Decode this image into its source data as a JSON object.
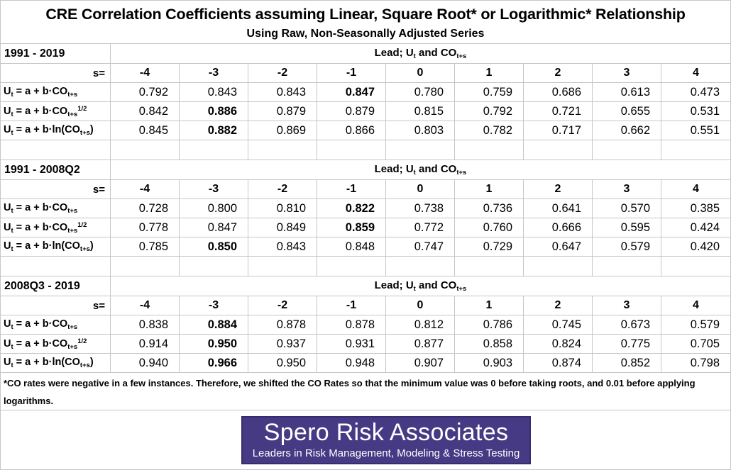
{
  "title": "CRE Correlation Coefficients assuming Linear, Square Root* or Logarithmic* Relationship",
  "subtitle": "Using Raw, Non-Seasonally Adjusted Series",
  "footnote": "*CO rates were negative in a few instances. Therefore, we shifted the CO Rates so that the minimum value was 0 before taking roots, and 0.01 before applying logarithms.",
  "banner": {
    "name": "Spero Risk Associates",
    "tagline": "Leaders in Risk Management, Modeling & Stress Testing",
    "bg_color": "#473a85",
    "border_color": "#382c6e",
    "text_color": "#ffffff"
  },
  "colors": {
    "grid_line": "#c6c6c6",
    "text": "#000000",
    "background": "#ffffff"
  },
  "chart_data": [
    {
      "type": "table",
      "period": "1991 - 2019",
      "lead_header": "Lead; U~t~ and CO~t+s~",
      "s_label": "s=",
      "columns": [
        "-4",
        "-3",
        "-2",
        "-1",
        "0",
        "1",
        "2",
        "3",
        "4"
      ],
      "rows": [
        {
          "label": "U~t~ = a + b·CO~t+s~",
          "values": [
            "0.792",
            "0.843",
            "0.843",
            "0.847",
            "0.780",
            "0.759",
            "0.686",
            "0.613",
            "0.473"
          ],
          "bold_index": 3
        },
        {
          "label": "U~t~ = a + b·CO~t+s~^1/2^",
          "values": [
            "0.842",
            "0.886",
            "0.879",
            "0.879",
            "0.815",
            "0.792",
            "0.721",
            "0.655",
            "0.531"
          ],
          "bold_index": 1
        },
        {
          "label": "U~t~ = a + b·ln(CO~t+s~)",
          "values": [
            "0.845",
            "0.882",
            "0.869",
            "0.866",
            "0.803",
            "0.782",
            "0.717",
            "0.662",
            "0.551"
          ],
          "bold_index": 1
        }
      ]
    },
    {
      "type": "table",
      "period": "1991 - 2008Q2",
      "lead_header": "Lead; U~t~ and CO~t+s~",
      "s_label": "s=",
      "columns": [
        "-4",
        "-3",
        "-2",
        "-1",
        "0",
        "1",
        "2",
        "3",
        "4"
      ],
      "rows": [
        {
          "label": "U~t~ = a + b·CO~t+s~",
          "values": [
            "0.728",
            "0.800",
            "0.810",
            "0.822",
            "0.738",
            "0.736",
            "0.641",
            "0.570",
            "0.385"
          ],
          "bold_index": 3
        },
        {
          "label": "U~t~ = a + b·CO~t+s~^1/2^",
          "values": [
            "0.778",
            "0.847",
            "0.849",
            "0.859",
            "0.772",
            "0.760",
            "0.666",
            "0.595",
            "0.424"
          ],
          "bold_index": 3
        },
        {
          "label": "U~t~ = a + b·ln(CO~t+s~)",
          "values": [
            "0.785",
            "0.850",
            "0.843",
            "0.848",
            "0.747",
            "0.729",
            "0.647",
            "0.579",
            "0.420"
          ],
          "bold_index": 1
        }
      ]
    },
    {
      "type": "table",
      "period": "2008Q3 - 2019",
      "lead_header": "Lead; U~t~ and CO~t+s~",
      "s_label": "s=",
      "columns": [
        "-4",
        "-3",
        "-2",
        "-1",
        "0",
        "1",
        "2",
        "3",
        "4"
      ],
      "rows": [
        {
          "label": "U~t~ = a + b·CO~t+s~",
          "values": [
            "0.838",
            "0.884",
            "0.878",
            "0.878",
            "0.812",
            "0.786",
            "0.745",
            "0.673",
            "0.579"
          ],
          "bold_index": 1
        },
        {
          "label": "U~t~ = a + b·CO~t+s~^1/2^",
          "values": [
            "0.914",
            "0.950",
            "0.937",
            "0.931",
            "0.877",
            "0.858",
            "0.824",
            "0.775",
            "0.705"
          ],
          "bold_index": 1
        },
        {
          "label": "U~t~ = a + b·ln(CO~t+s~)",
          "values": [
            "0.940",
            "0.966",
            "0.950",
            "0.948",
            "0.907",
            "0.903",
            "0.874",
            "0.852",
            "0.798"
          ],
          "bold_index": 1
        }
      ]
    }
  ]
}
